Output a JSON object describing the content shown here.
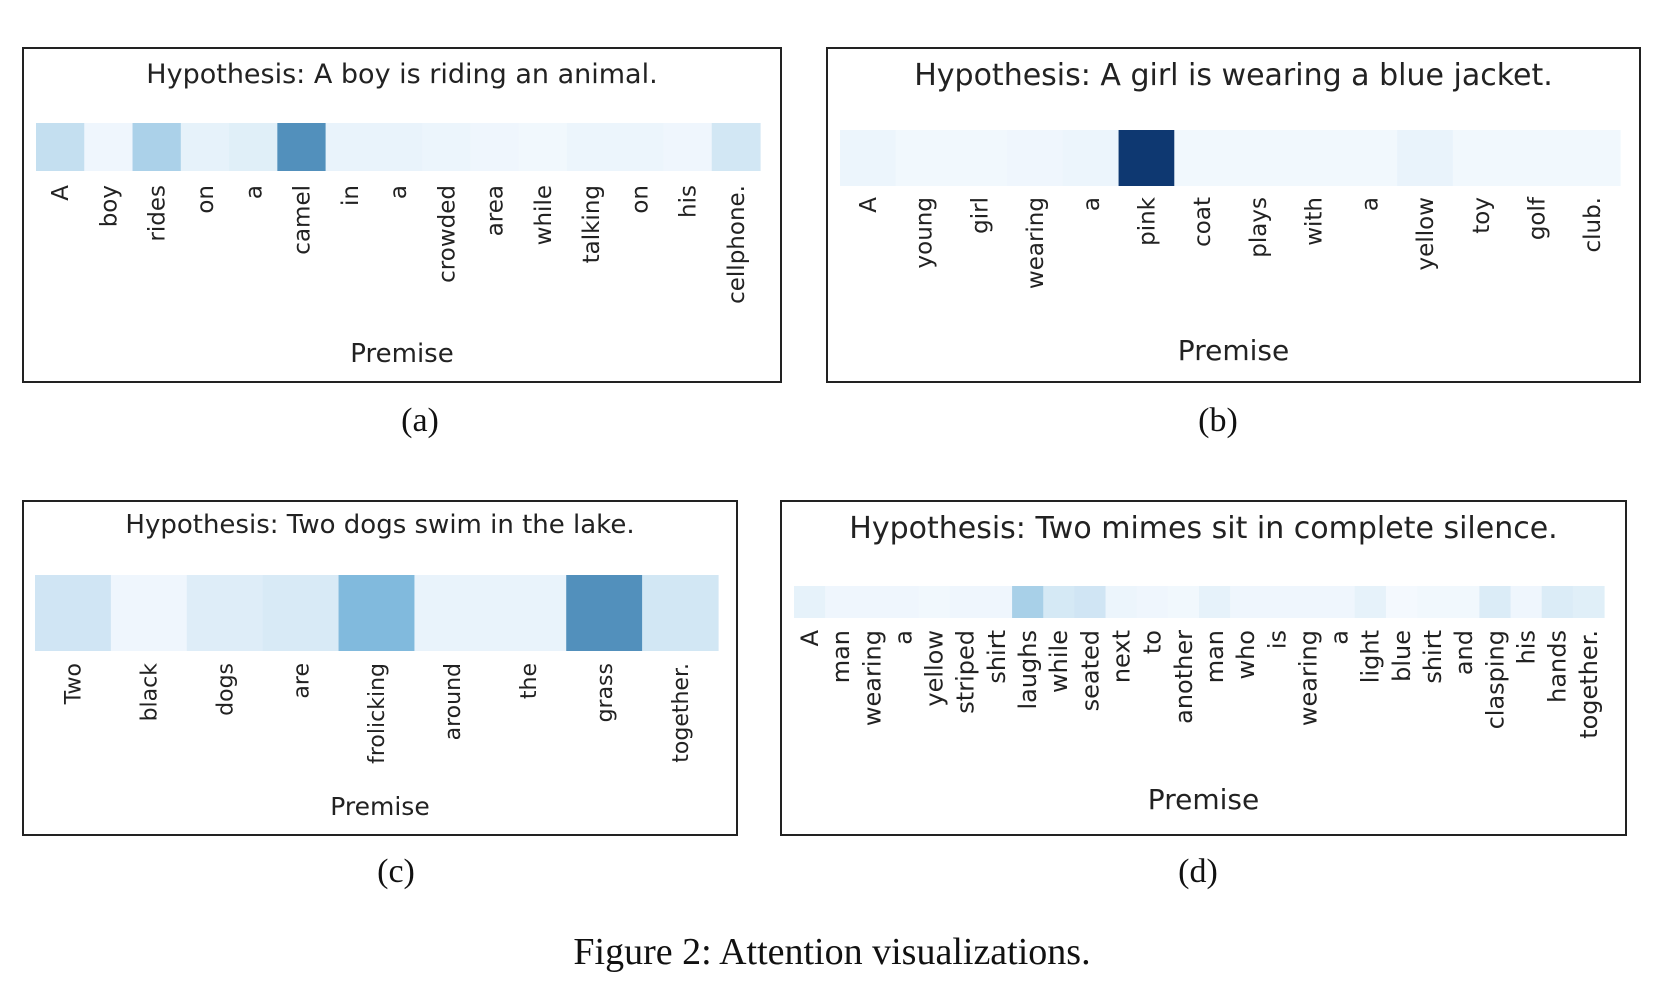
{
  "figure_caption": "Figure 2: Attention visualizations.",
  "colors": {
    "low": "#f7fbff",
    "mid": "#6aaed6",
    "high": "#08306b",
    "text": "#222222",
    "border": "#222222"
  },
  "chart_data": [
    {
      "type": "heatmap",
      "subcaption": "(a)",
      "title": "Hypothesis: A boy is riding an animal.",
      "xlabel": "Premise",
      "ylabel": "",
      "tokens": [
        "A",
        "boy",
        "rides",
        "on",
        "a",
        "camel",
        "in",
        "a",
        "crowded",
        "area",
        "while",
        "talking",
        "on",
        "his",
        "cellphone."
      ],
      "values": [
        0.18,
        0.03,
        0.27,
        0.06,
        0.08,
        0.62,
        0.05,
        0.05,
        0.04,
        0.03,
        0.02,
        0.04,
        0.04,
        0.03,
        0.13
      ]
    },
    {
      "type": "heatmap",
      "subcaption": "(b)",
      "title": "Hypothesis: A girl is wearing a blue jacket.",
      "xlabel": "Premise",
      "ylabel": "",
      "tokens": [
        "A",
        "young",
        "girl",
        "wearing",
        "a",
        "pink",
        "coat",
        "plays",
        "with",
        "a",
        "yellow",
        "toy",
        "golf",
        "club."
      ],
      "values": [
        0.04,
        0.02,
        0.02,
        0.03,
        0.04,
        0.97,
        0.02,
        0.02,
        0.02,
        0.02,
        0.05,
        0.02,
        0.02,
        0.02
      ]
    },
    {
      "type": "heatmap",
      "subcaption": "(c)",
      "title": "Hypothesis: Two dogs swim in the lake.",
      "xlabel": "Premise",
      "ylabel": "",
      "tokens": [
        "Two",
        "black",
        "dogs",
        "are",
        "frolicking",
        "around",
        "the",
        "grass",
        "together."
      ],
      "values": [
        0.14,
        0.03,
        0.09,
        0.11,
        0.42,
        0.05,
        0.05,
        0.62,
        0.13
      ]
    },
    {
      "type": "heatmap",
      "subcaption": "(d)",
      "title": "Hypothesis: Two mimes sit in complete silence.",
      "xlabel": "Premise",
      "ylabel": "",
      "tokens": [
        "A",
        "man",
        "wearing",
        "a",
        "yellow",
        "striped",
        "shirt",
        "laughs",
        "while",
        "seated",
        "next",
        "to",
        "another",
        "man",
        "who",
        "is",
        "wearing",
        "a",
        "light",
        "blue",
        "shirt",
        "and",
        "clasping",
        "his",
        "hands",
        "together."
      ],
      "values": [
        0.06,
        0.03,
        0.03,
        0.03,
        0.02,
        0.03,
        0.03,
        0.28,
        0.12,
        0.14,
        0.04,
        0.03,
        0.02,
        0.06,
        0.03,
        0.03,
        0.03,
        0.03,
        0.06,
        0.01,
        0.02,
        0.02,
        0.1,
        0.03,
        0.1,
        0.08
      ]
    }
  ]
}
